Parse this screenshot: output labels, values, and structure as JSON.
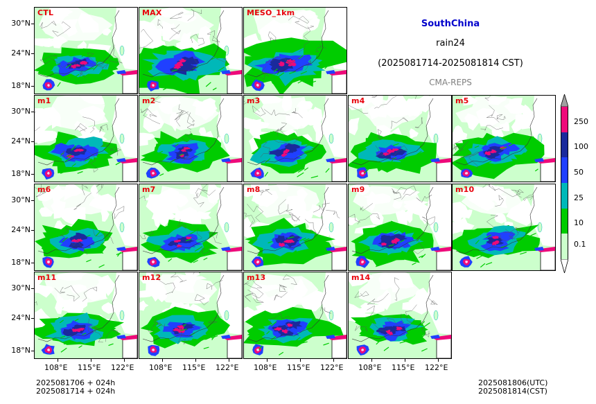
{
  "title": {
    "region": "SouthChina",
    "variable": "rain24",
    "period": "(2025081714-2025081814 CST)",
    "source": "CMA-REPS"
  },
  "panels": [
    "CTL",
    "MAX",
    "MESO_1km",
    "m1",
    "m2",
    "m3",
    "m4",
    "m5",
    "m6",
    "m7",
    "m8",
    "m9",
    "m10",
    "m11",
    "m12",
    "m13",
    "m14"
  ],
  "lat_ticks": [
    "30°N",
    "24°N",
    "18°N"
  ],
  "lon_ticks": [
    "108°E",
    "115°E",
    "122°E"
  ],
  "colorbar": {
    "levels": [
      "0.1",
      "10",
      "25",
      "50",
      "100",
      "250"
    ],
    "colors": [
      "#ccffcc",
      "#00cc00",
      "#00b8b8",
      "#2040ff",
      "#1a2a9c",
      "#ee0a7a"
    ],
    "extend_max_color": "#a0a0a0"
  },
  "footer": {
    "init_utc": "2025081706  +  024h",
    "init_cst": "2025081714  +  024h",
    "valid_utc": "2025081806(UTC)",
    "valid_cst": "2025081814(CST)"
  }
}
